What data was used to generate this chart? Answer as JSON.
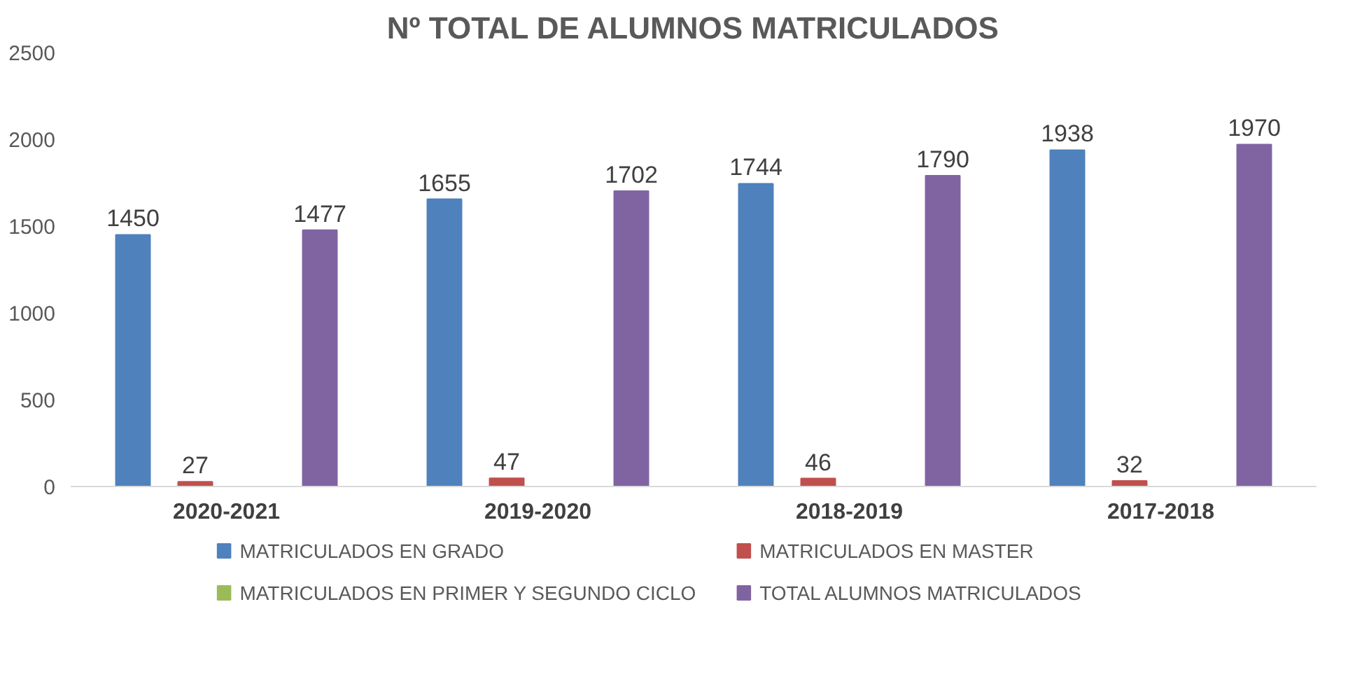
{
  "chart_data": {
    "type": "bar",
    "title": "Nº TOTAL DE ALUMNOS MATRICULADOS",
    "categories": [
      "2020-2021",
      "2019-2020",
      "2018-2019",
      "2017-2018"
    ],
    "series": [
      {
        "name": "MATRICULADOS EN GRADO",
        "color": "#4f81bd",
        "values": [
          1450,
          1655,
          1744,
          1938
        ]
      },
      {
        "name": "MATRICULADOS EN MASTER",
        "color": "#c0504d",
        "values": [
          27,
          47,
          46,
          32
        ]
      },
      {
        "name": "MATRICULADOS EN PRIMER Y SEGUNDO CICLO",
        "color": "#9bbb59",
        "values": [
          null,
          null,
          null,
          null
        ]
      },
      {
        "name": "TOTAL ALUMNOS MATRICULADOS",
        "color": "#8064a2",
        "values": [
          1477,
          1702,
          1790,
          1970
        ]
      }
    ],
    "ylim": [
      0,
      2500
    ],
    "yticks": [
      0,
      500,
      1000,
      1500,
      2000,
      2500
    ],
    "grid": false,
    "legend": "bottom",
    "data_labels": true
  }
}
